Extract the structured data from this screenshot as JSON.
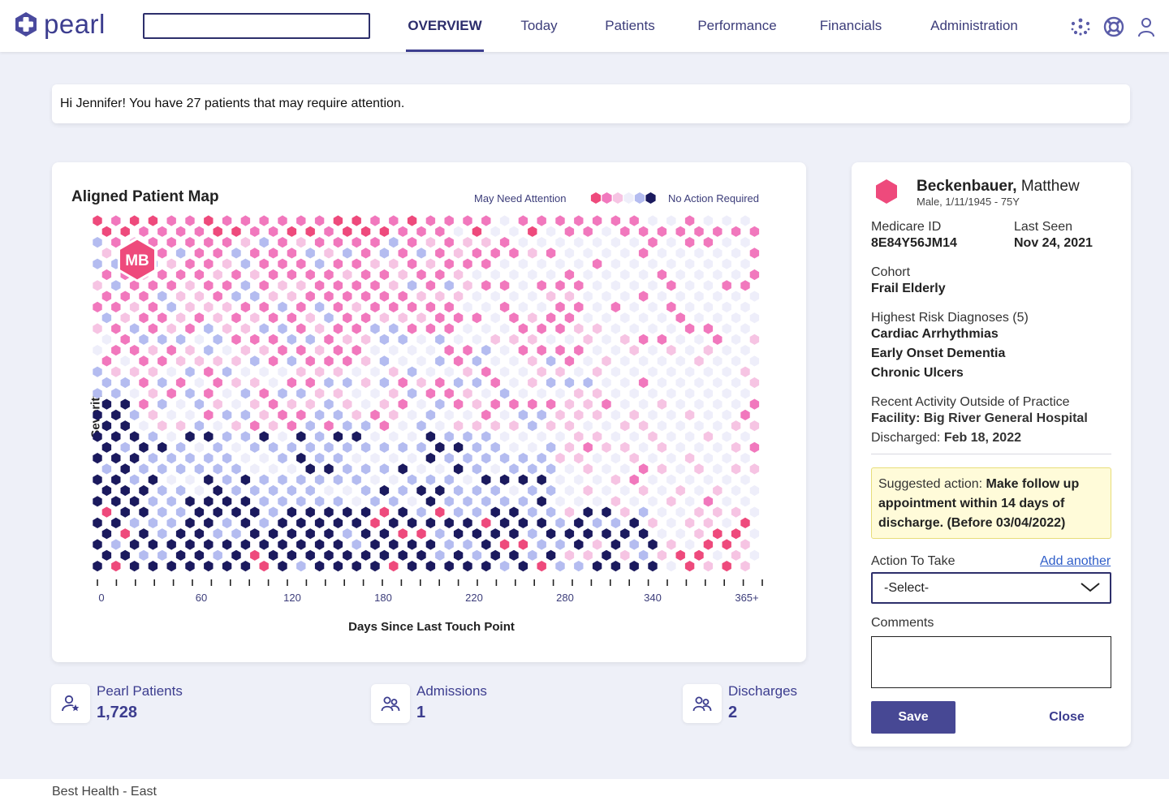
{
  "app": {
    "logo_text": "pearl"
  },
  "nav": {
    "search_placeholder": "",
    "items": [
      {
        "label": "OVERVIEW",
        "active": true
      },
      {
        "label": "Today"
      },
      {
        "label": "Patients"
      },
      {
        "label": "Performance"
      },
      {
        "label": "Financials"
      },
      {
        "label": "Administration"
      }
    ],
    "icons": [
      "network-icon",
      "help-lifebuoy-icon",
      "user-profile-icon"
    ]
  },
  "greeting": "Hi Jennifer! You have 27 patients that may require attention.",
  "map": {
    "title": "Aligned Patient Map",
    "legend_left": "May Need Attention",
    "legend_right": "No Action Required",
    "legend_colors": [
      "#ee4a7c",
      "#f178bd",
      "#f6c4e3",
      "#eeeefa",
      "#b4bcf0",
      "#1b1a5e"
    ],
    "y_label": "Severity",
    "x_label": "Days Since Last Touch Point",
    "x_ticks": [
      "0",
      "60",
      "120",
      "180",
      "220",
      "280",
      "340",
      "365+"
    ],
    "highlight_label": "MB",
    "highlight_color": "#ee4a7c"
  },
  "stats": [
    {
      "label": "Pearl Patients",
      "value": "1,728",
      "icon": "patient-star-icon"
    },
    {
      "label": "Admissions",
      "value": "1",
      "icon": "people-icon"
    },
    {
      "label": "Discharges",
      "value": "2",
      "icon": "people-icon"
    }
  ],
  "patient": {
    "last_name": "Beckenbauer,",
    "first_name": "Matthew",
    "sub": "Male, 1/11/1945 - 75Y",
    "medicare_label": "Medicare ID",
    "medicare_value": "8E84Y56JM14",
    "last_seen_label": "Last Seen",
    "last_seen_value": "Nov 24, 2021",
    "cohort_label": "Cohort",
    "cohort_value": "Frail Elderly",
    "diagnoses_label": "Highest Risk Diagnoses (5)",
    "diagnoses": [
      "Cardiac Arrhythmias",
      "Early Onset Dementia",
      "Chronic Ulcers"
    ],
    "activity_label": "Recent Activity Outside of Practice",
    "facility_label": "Facility:",
    "facility_value": "Big River General Hospital",
    "discharged_label": "Discharged:",
    "discharged_value": "Feb 18, 2022",
    "suggest_prefix": "Suggested action:",
    "suggest_text": "Make follow up appointment within 14 days  of discharge. (Before 03/04/2022)",
    "action_label": "Action To Take",
    "add_another": "Add another",
    "select_value": "-Select-",
    "comments_label": "Comments",
    "comments_value": "",
    "save_label": "Save",
    "close_label": "Close"
  },
  "footer": "Best Health - East"
}
